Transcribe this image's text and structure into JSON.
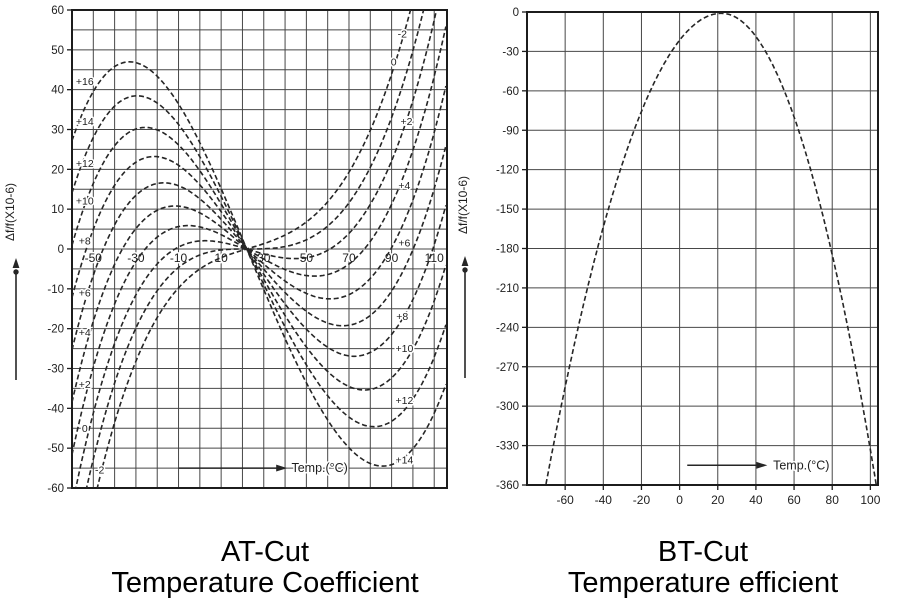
{
  "page": {
    "background": "#ffffff"
  },
  "colors": {
    "grid": "#474747",
    "border": "#1c1c1c",
    "curve": "#262626",
    "text": "#1e1e1e",
    "caption": "#000000",
    "halo": "#ffffff"
  },
  "chart_data": [
    {
      "id": "at",
      "type": "line",
      "title": "AT-Cut",
      "subtitle": "Temperature Coefficient",
      "xlabel": "Temp.(°C)",
      "ylabel": "Δf/f(X10-6)",
      "xlim": [
        -60,
        116
      ],
      "ylim": [
        -60,
        60
      ],
      "grid": true,
      "x_grid_start": -60,
      "x_grid_end": 110,
      "x_grid_step": 10,
      "y_grid_step": 5,
      "x_ticks": [
        -50,
        -30,
        -10,
        10,
        30,
        50,
        70,
        90,
        110
      ],
      "x_tick_style": "inside-zero-line",
      "y_ticks": [
        60,
        50,
        40,
        30,
        20,
        10,
        0,
        -10,
        -20,
        -30,
        -40,
        -50,
        -60
      ],
      "convergence_point": [
        22,
        0
      ],
      "model": {
        "type": "cubic-family",
        "t0": 22,
        "A_left": 0.00014125,
        "A_right": 0.000105,
        "B": 0.0801
      },
      "curves": [
        {
          "theta": 16,
          "label": "+16",
          "peak": [
            -33,
            47
          ],
          "label_left": [
            -54,
            42
          ],
          "label_right": null
        },
        {
          "theta": 14,
          "label": "+14",
          "peak": [
            -29,
            38.5
          ],
          "label_left": [
            -54,
            32
          ],
          "label_right": [
            96,
            -53
          ]
        },
        {
          "theta": 12,
          "label": "+12",
          "peak": [
            -27,
            30.5
          ],
          "label_left": [
            -54,
            21.5
          ],
          "label_right": [
            96,
            -38
          ]
        },
        {
          "theta": 10,
          "label": "+10",
          "peak": [
            -24,
            22
          ],
          "label_left": [
            -54,
            12
          ],
          "label_right": [
            96,
            -25
          ]
        },
        {
          "theta": 8,
          "label": "+8",
          "peak": [
            -20,
            16
          ],
          "label_left": [
            -54,
            2
          ],
          "label_right": [
            95,
            -17
          ]
        },
        {
          "theta": 6,
          "label": "+6",
          "peak": [
            -17,
            10.5
          ],
          "label_left": [
            -54,
            -11
          ],
          "label_right": [
            96,
            1.5
          ]
        },
        {
          "theta": 4,
          "label": "+4",
          "peak": [
            -14,
            5.5
          ],
          "label_left": [
            -54,
            -21
          ],
          "label_right": [
            96,
            16
          ]
        },
        {
          "theta": 2,
          "label": "+2",
          "peak": [
            -8,
            2
          ],
          "label_left": [
            -54,
            -34
          ],
          "label_right": [
            97,
            32
          ]
        },
        {
          "theta": 0,
          "label": "0",
          "peak": null,
          "label_left": [
            -54,
            -45
          ],
          "label_right": [
            91,
            47
          ]
        },
        {
          "theta": -2,
          "label": "-2",
          "peak": null,
          "label_left": [
            -47,
            -55.5
          ],
          "label_right": [
            95,
            54
          ]
        }
      ],
      "temp_label": {
        "text": "Temp.(°C)",
        "arrow_from": [
          -10,
          -55
        ],
        "arrow_to": [
          41,
          -55
        ],
        "text_x": 43
      }
    },
    {
      "id": "bt",
      "type": "line",
      "title": "BT-Cut",
      "subtitle": "Temperature efficient",
      "xlabel": "Temp.(°C)",
      "ylabel": "Δf/f(X10-6)",
      "xlim": [
        -80,
        104
      ],
      "ylim": [
        -360,
        0
      ],
      "grid": true,
      "x_grid_start": -60,
      "x_grid_end": 100,
      "x_grid_step": 20,
      "y_grid_step": 30,
      "x_ticks": [
        -60,
        -40,
        -20,
        0,
        20,
        40,
        60,
        80,
        100
      ],
      "x_tick_style": "below-axis",
      "y_ticks": [
        0,
        -30,
        -60,
        -90,
        -120,
        -150,
        -180,
        -210,
        -240,
        -270,
        -300,
        -330,
        -360
      ],
      "model": {
        "type": "parabola",
        "peak": [
          22,
          -1
        ],
        "k_left": 0.0423,
        "k_right": 0.0546
      },
      "points": [
        [
          -70,
          -360
        ],
        [
          -60,
          -285
        ],
        [
          -40,
          -164
        ],
        [
          -20,
          -76
        ],
        [
          0,
          -21
        ],
        [
          22,
          -1
        ],
        [
          40,
          -19
        ],
        [
          60,
          -80
        ],
        [
          80,
          -185
        ],
        [
          100,
          -333
        ],
        [
          103,
          -360
        ]
      ],
      "temp_label": {
        "text": "Temp.(°C)",
        "arrow_from": [
          4,
          -345
        ],
        "arrow_to": [
          46,
          -345
        ],
        "text_x": 49
      }
    }
  ]
}
